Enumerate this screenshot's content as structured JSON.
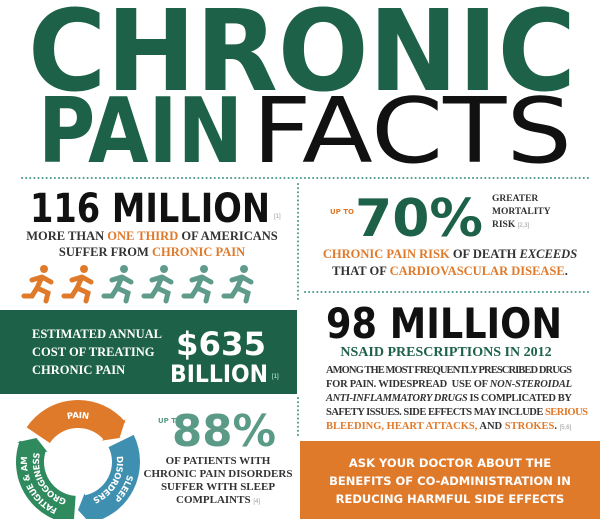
{
  "title": {
    "line1": "CHRONIC",
    "pain": "PAIN",
    "facts": "FACTS"
  },
  "americans": {
    "number": "116 MILLION",
    "ref": "[1]",
    "line1": [
      "MORE THAN ",
      "ONE THIRD",
      " OF AMERICANS"
    ],
    "line2": [
      "SUFFER FROM ",
      "CHRONIC PAIN"
    ]
  },
  "mortality": {
    "up_to": "UP TO",
    "number": "70%",
    "label": [
      "GREATER",
      "MORTALITY",
      "RISK"
    ],
    "ref": "[2,3]",
    "line1": [
      "CHRONIC PAIN RISK",
      " OF DEATH ",
      "EXCEEDS"
    ],
    "line2": [
      "THAT OF ",
      "CARDIOVASCULAR DISEASE",
      "."
    ]
  },
  "cost": {
    "label": [
      "ESTIMATED ANNUAL",
      "COST OF TREATING",
      "CHRONIC PAIN"
    ],
    "amount": "$635",
    "unit": "BILLION",
    "ref": "[1]"
  },
  "nsaid": {
    "number": "98 MILLION",
    "subtitle": "NSAID PRESCRIPTIONS IN 2012",
    "lines": [
      [
        "AMONG THE MOST FREQUENTLY PRESCRIBED DRUGS"
      ],
      [
        "FOR PAIN. WIDESPREAD  USE OF ",
        "NON-STEROIDAL"
      ],
      [
        "ANTI-INFLAMMATORY DRUGS",
        " IS COMPLICATED BY"
      ],
      [
        "SAFETY ISSUES. SIDE EFFECTS MAY INCLUDE ",
        "SERIOUS"
      ],
      [
        "BLEEDING, HEART ATTACKS,",
        " AND ",
        "STROKES",
        ".",
        "[5,6]"
      ]
    ]
  },
  "sleep": {
    "cycle": {
      "pain": "PAIN",
      "sleep": [
        "SLEEP",
        "DISORDERS"
      ],
      "fatigue": [
        "FATIGUE & AM",
        "GROGGINESS"
      ]
    },
    "up_to": "UP TO",
    "number": "88%",
    "lines": [
      "OF PATIENTS WITH",
      "CHRONIC PAIN DISORDERS",
      "SUFFER WITH SLEEP",
      "COMPLAINTS"
    ],
    "ref": "[4]"
  },
  "callout": [
    "ASK YOUR DOCTOR ABOUT THE",
    "BENEFITS OF CO-ADMINISTRATION IN",
    "REDUCING HARMFUL SIDE EFFECTS"
  ]
}
